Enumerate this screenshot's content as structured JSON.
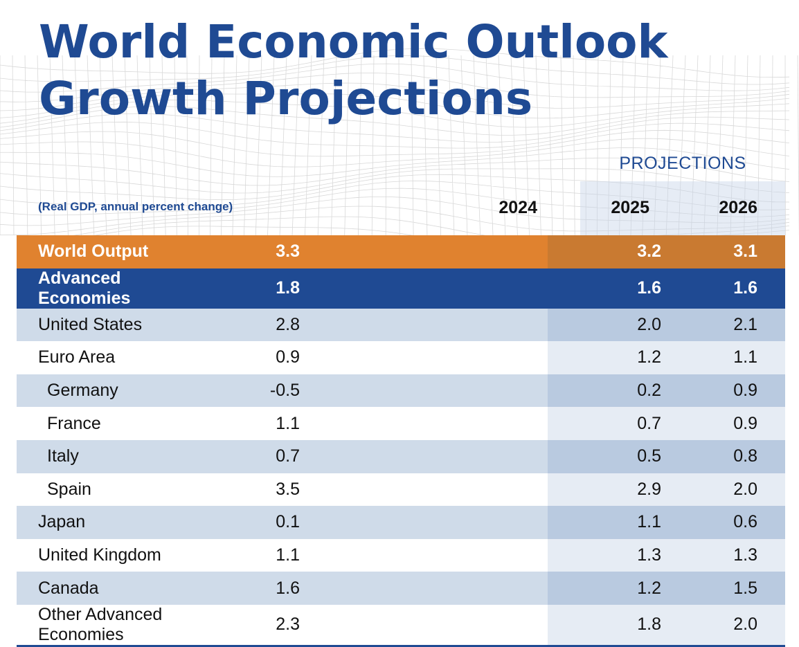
{
  "title": {
    "line1": "World Economic Outlook",
    "line2": "Growth Projections"
  },
  "header": {
    "projections_label": "PROJECTIONS",
    "subtitle": "(Real GDP, annual percent change)",
    "years": [
      "2024",
      "2025",
      "2026"
    ]
  },
  "colors": {
    "brand_blue": "#1f4a93",
    "orange": "#e0822f",
    "row_shade": "#cfdbe9"
  },
  "rows": [
    {
      "name": "World Output",
      "values": [
        "3.3",
        "3.2",
        "3.1"
      ]
    },
    {
      "name": "Advanced Economies",
      "values": [
        "1.8",
        "1.6",
        "1.6"
      ]
    },
    {
      "name": "United States",
      "values": [
        "2.8",
        "2.0",
        "2.1"
      ]
    },
    {
      "name": "Euro Area",
      "values": [
        "0.9",
        "1.2",
        "1.1"
      ]
    },
    {
      "name": "Germany",
      "values": [
        "-0.5",
        "0.2",
        "0.9"
      ]
    },
    {
      "name": "France",
      "values": [
        "1.1",
        "0.7",
        "0.9"
      ]
    },
    {
      "name": "Italy",
      "values": [
        "0.7",
        "0.5",
        "0.8"
      ]
    },
    {
      "name": "Spain",
      "values": [
        "3.5",
        "2.9",
        "2.0"
      ]
    },
    {
      "name": "Japan",
      "values": [
        "0.1",
        "1.1",
        "0.6"
      ]
    },
    {
      "name": "United Kingdom",
      "values": [
        "1.1",
        "1.3",
        "1.3"
      ]
    },
    {
      "name": "Canada",
      "values": [
        "1.6",
        "1.2",
        "1.5"
      ]
    },
    {
      "name": "Other Advanced Economies",
      "values": [
        "2.3",
        "1.8",
        "2.0"
      ]
    }
  ]
}
